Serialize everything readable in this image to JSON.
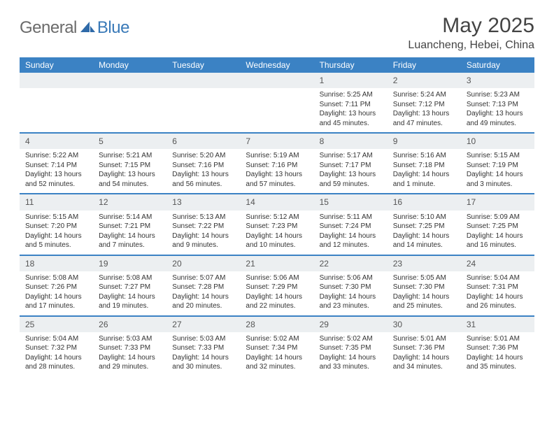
{
  "brand": {
    "part1": "General",
    "part2": "Blue"
  },
  "title": "May 2025",
  "location": "Luancheng, Hebei, China",
  "colors": {
    "header_bg": "#3b82c4",
    "header_text": "#ffffff",
    "daynum_bg": "#eceff1",
    "divider": "#3b82c4",
    "brand_gray": "#6b6b6b",
    "brand_blue": "#3a7ab8"
  },
  "day_headers": [
    "Sunday",
    "Monday",
    "Tuesday",
    "Wednesday",
    "Thursday",
    "Friday",
    "Saturday"
  ],
  "weeks": [
    {
      "nums": [
        "",
        "",
        "",
        "",
        "1",
        "2",
        "3"
      ],
      "cells": [
        null,
        null,
        null,
        null,
        {
          "sunrise": "Sunrise: 5:25 AM",
          "sunset": "Sunset: 7:11 PM",
          "dl1": "Daylight: 13 hours",
          "dl2": "and 45 minutes."
        },
        {
          "sunrise": "Sunrise: 5:24 AM",
          "sunset": "Sunset: 7:12 PM",
          "dl1": "Daylight: 13 hours",
          "dl2": "and 47 minutes."
        },
        {
          "sunrise": "Sunrise: 5:23 AM",
          "sunset": "Sunset: 7:13 PM",
          "dl1": "Daylight: 13 hours",
          "dl2": "and 49 minutes."
        }
      ]
    },
    {
      "nums": [
        "4",
        "5",
        "6",
        "7",
        "8",
        "9",
        "10"
      ],
      "cells": [
        {
          "sunrise": "Sunrise: 5:22 AM",
          "sunset": "Sunset: 7:14 PM",
          "dl1": "Daylight: 13 hours",
          "dl2": "and 52 minutes."
        },
        {
          "sunrise": "Sunrise: 5:21 AM",
          "sunset": "Sunset: 7:15 PM",
          "dl1": "Daylight: 13 hours",
          "dl2": "and 54 minutes."
        },
        {
          "sunrise": "Sunrise: 5:20 AM",
          "sunset": "Sunset: 7:16 PM",
          "dl1": "Daylight: 13 hours",
          "dl2": "and 56 minutes."
        },
        {
          "sunrise": "Sunrise: 5:19 AM",
          "sunset": "Sunset: 7:16 PM",
          "dl1": "Daylight: 13 hours",
          "dl2": "and 57 minutes."
        },
        {
          "sunrise": "Sunrise: 5:17 AM",
          "sunset": "Sunset: 7:17 PM",
          "dl1": "Daylight: 13 hours",
          "dl2": "and 59 minutes."
        },
        {
          "sunrise": "Sunrise: 5:16 AM",
          "sunset": "Sunset: 7:18 PM",
          "dl1": "Daylight: 14 hours",
          "dl2": "and 1 minute."
        },
        {
          "sunrise": "Sunrise: 5:15 AM",
          "sunset": "Sunset: 7:19 PM",
          "dl1": "Daylight: 14 hours",
          "dl2": "and 3 minutes."
        }
      ]
    },
    {
      "nums": [
        "11",
        "12",
        "13",
        "14",
        "15",
        "16",
        "17"
      ],
      "cells": [
        {
          "sunrise": "Sunrise: 5:15 AM",
          "sunset": "Sunset: 7:20 PM",
          "dl1": "Daylight: 14 hours",
          "dl2": "and 5 minutes."
        },
        {
          "sunrise": "Sunrise: 5:14 AM",
          "sunset": "Sunset: 7:21 PM",
          "dl1": "Daylight: 14 hours",
          "dl2": "and 7 minutes."
        },
        {
          "sunrise": "Sunrise: 5:13 AM",
          "sunset": "Sunset: 7:22 PM",
          "dl1": "Daylight: 14 hours",
          "dl2": "and 9 minutes."
        },
        {
          "sunrise": "Sunrise: 5:12 AM",
          "sunset": "Sunset: 7:23 PM",
          "dl1": "Daylight: 14 hours",
          "dl2": "and 10 minutes."
        },
        {
          "sunrise": "Sunrise: 5:11 AM",
          "sunset": "Sunset: 7:24 PM",
          "dl1": "Daylight: 14 hours",
          "dl2": "and 12 minutes."
        },
        {
          "sunrise": "Sunrise: 5:10 AM",
          "sunset": "Sunset: 7:25 PM",
          "dl1": "Daylight: 14 hours",
          "dl2": "and 14 minutes."
        },
        {
          "sunrise": "Sunrise: 5:09 AM",
          "sunset": "Sunset: 7:25 PM",
          "dl1": "Daylight: 14 hours",
          "dl2": "and 16 minutes."
        }
      ]
    },
    {
      "nums": [
        "18",
        "19",
        "20",
        "21",
        "22",
        "23",
        "24"
      ],
      "cells": [
        {
          "sunrise": "Sunrise: 5:08 AM",
          "sunset": "Sunset: 7:26 PM",
          "dl1": "Daylight: 14 hours",
          "dl2": "and 17 minutes."
        },
        {
          "sunrise": "Sunrise: 5:08 AM",
          "sunset": "Sunset: 7:27 PM",
          "dl1": "Daylight: 14 hours",
          "dl2": "and 19 minutes."
        },
        {
          "sunrise": "Sunrise: 5:07 AM",
          "sunset": "Sunset: 7:28 PM",
          "dl1": "Daylight: 14 hours",
          "dl2": "and 20 minutes."
        },
        {
          "sunrise": "Sunrise: 5:06 AM",
          "sunset": "Sunset: 7:29 PM",
          "dl1": "Daylight: 14 hours",
          "dl2": "and 22 minutes."
        },
        {
          "sunrise": "Sunrise: 5:06 AM",
          "sunset": "Sunset: 7:30 PM",
          "dl1": "Daylight: 14 hours",
          "dl2": "and 23 minutes."
        },
        {
          "sunrise": "Sunrise: 5:05 AM",
          "sunset": "Sunset: 7:30 PM",
          "dl1": "Daylight: 14 hours",
          "dl2": "and 25 minutes."
        },
        {
          "sunrise": "Sunrise: 5:04 AM",
          "sunset": "Sunset: 7:31 PM",
          "dl1": "Daylight: 14 hours",
          "dl2": "and 26 minutes."
        }
      ]
    },
    {
      "nums": [
        "25",
        "26",
        "27",
        "28",
        "29",
        "30",
        "31"
      ],
      "cells": [
        {
          "sunrise": "Sunrise: 5:04 AM",
          "sunset": "Sunset: 7:32 PM",
          "dl1": "Daylight: 14 hours",
          "dl2": "and 28 minutes."
        },
        {
          "sunrise": "Sunrise: 5:03 AM",
          "sunset": "Sunset: 7:33 PM",
          "dl1": "Daylight: 14 hours",
          "dl2": "and 29 minutes."
        },
        {
          "sunrise": "Sunrise: 5:03 AM",
          "sunset": "Sunset: 7:33 PM",
          "dl1": "Daylight: 14 hours",
          "dl2": "and 30 minutes."
        },
        {
          "sunrise": "Sunrise: 5:02 AM",
          "sunset": "Sunset: 7:34 PM",
          "dl1": "Daylight: 14 hours",
          "dl2": "and 32 minutes."
        },
        {
          "sunrise": "Sunrise: 5:02 AM",
          "sunset": "Sunset: 7:35 PM",
          "dl1": "Daylight: 14 hours",
          "dl2": "and 33 minutes."
        },
        {
          "sunrise": "Sunrise: 5:01 AM",
          "sunset": "Sunset: 7:36 PM",
          "dl1": "Daylight: 14 hours",
          "dl2": "and 34 minutes."
        },
        {
          "sunrise": "Sunrise: 5:01 AM",
          "sunset": "Sunset: 7:36 PM",
          "dl1": "Daylight: 14 hours",
          "dl2": "and 35 minutes."
        }
      ]
    }
  ]
}
